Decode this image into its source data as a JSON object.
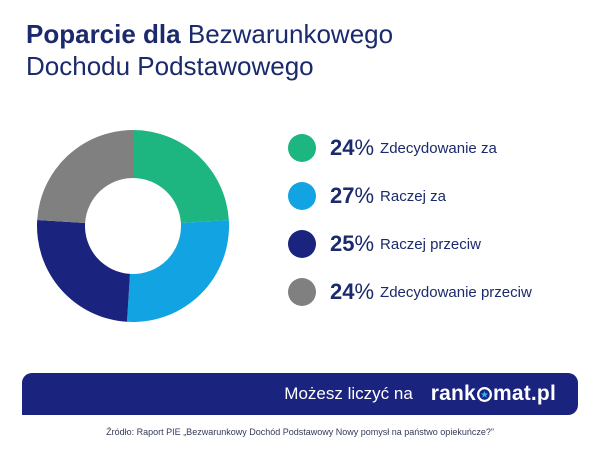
{
  "title": {
    "bold": "Poparcie dla",
    "line1_rest": " Bezwarunkowego",
    "line2": "Dochodu Podstawowego"
  },
  "chart_data": {
    "type": "pie",
    "donut": true,
    "categories": [
      "Zdecydowanie za",
      "Raczej za",
      "Raczej przeciw",
      "Zdecydowanie przeciw"
    ],
    "values": [
      24,
      27,
      25,
      24
    ],
    "value_labels": [
      "24",
      "27",
      "25",
      "24"
    ],
    "unit": "%",
    "colors": [
      "#1db580",
      "#12a3e3",
      "#1a237e",
      "#808080"
    ],
    "legend_position": "right"
  },
  "banner": {
    "text": "Możesz liczyć na",
    "brand_left": "rank",
    "brand_right": "mat.pl"
  },
  "source": "Źródło: Raport PIE „Bezwarunkowy Dochód Podstawowy Nowy pomysł na państwo opiekuńcze?”"
}
